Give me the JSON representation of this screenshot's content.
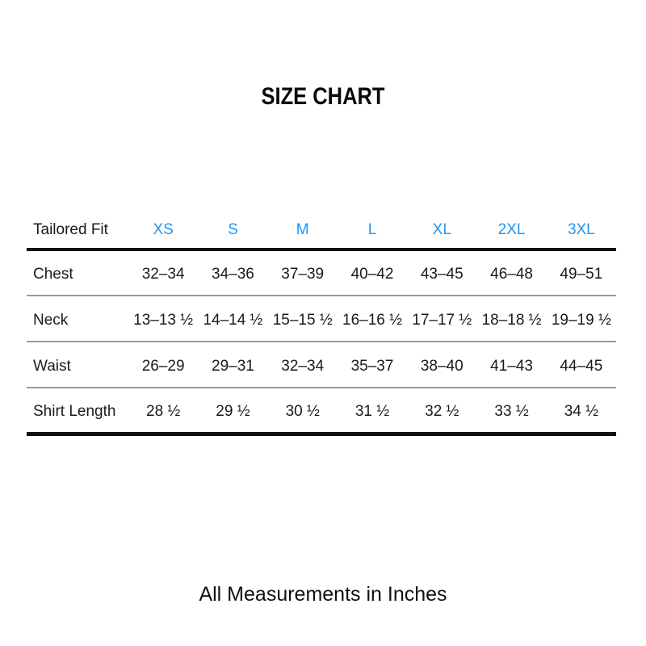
{
  "title": "SIZE CHART",
  "footer": "All Measurements in Inches",
  "accent_color": "#2196F3",
  "text_color": "#1a1a1a",
  "thick_rule_color": "#111111",
  "thin_rule_color": "#999999",
  "chart_data": {
    "type": "table",
    "title": "SIZE CHART",
    "corner_label": "Tailored Fit",
    "columns": [
      "XS",
      "S",
      "M",
      "L",
      "XL",
      "2XL",
      "3XL"
    ],
    "rows": [
      {
        "label": "Chest",
        "values": [
          "32–34",
          "34–36",
          "37–39",
          "40–42",
          "43–45",
          "46–48",
          "49–51"
        ]
      },
      {
        "label": "Neck",
        "values": [
          "13–13 ½",
          "14–14 ½",
          "15–15 ½",
          "16–16 ½",
          "17–17 ½",
          "18–18 ½",
          "19–19 ½"
        ]
      },
      {
        "label": "Waist",
        "values": [
          "26–29",
          "29–31",
          "32–34",
          "35–37",
          "38–40",
          "41–43",
          "44–45"
        ]
      },
      {
        "label": "Shirt Length",
        "values": [
          "28 ½",
          "29 ½",
          "30 ½",
          "31 ½",
          "32 ½",
          "33 ½",
          "34 ½"
        ]
      }
    ],
    "note": "All Measurements in Inches",
    "layout": {
      "grid": "horizontal rules only",
      "header_text_color": "#2196F3",
      "units": "inches"
    }
  }
}
